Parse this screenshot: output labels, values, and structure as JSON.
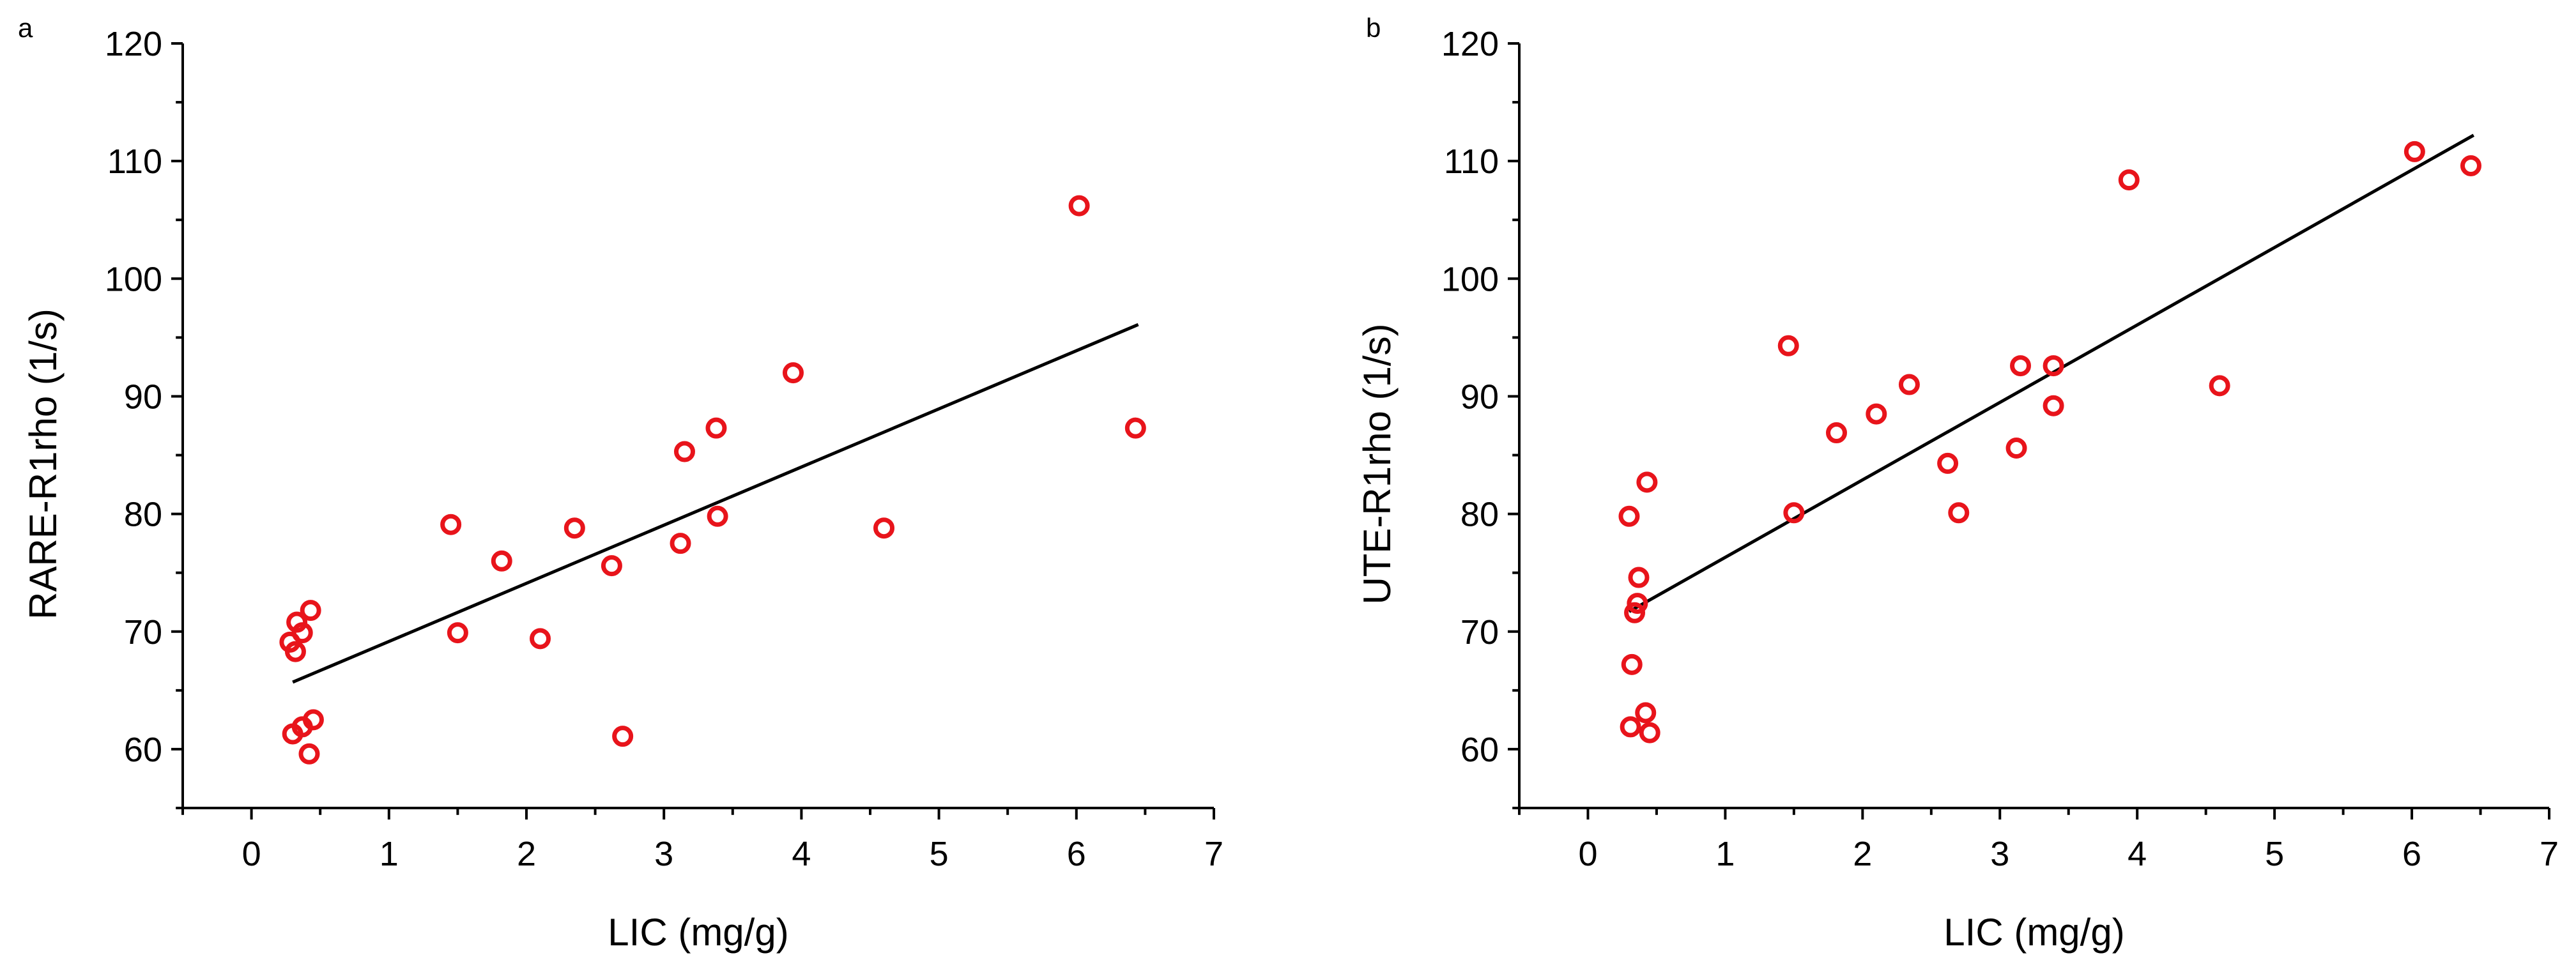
{
  "chart_data": [
    {
      "type": "scatter",
      "panel_label": "a",
      "title": "",
      "xlabel": "LIC (mg/g)",
      "ylabel": "RARE-R1rho (1/s)",
      "xlim": [
        -0.5,
        7
      ],
      "ylim": [
        55,
        120
      ],
      "xticks": [
        0,
        1,
        2,
        3,
        4,
        5,
        6,
        7
      ],
      "yticks": [
        60,
        70,
        80,
        90,
        100,
        110,
        120
      ],
      "grid": false,
      "legend": "none",
      "marker_color": "#e8141b",
      "line_color": "#000000",
      "points": [
        {
          "x": 0.28,
          "y": 69.1
        },
        {
          "x": 0.32,
          "y": 68.3
        },
        {
          "x": 0.33,
          "y": 70.8
        },
        {
          "x": 0.37,
          "y": 69.9
        },
        {
          "x": 0.43,
          "y": 71.8
        },
        {
          "x": 0.3,
          "y": 61.3
        },
        {
          "x": 0.37,
          "y": 61.9
        },
        {
          "x": 0.45,
          "y": 62.5
        },
        {
          "x": 0.42,
          "y": 59.6
        },
        {
          "x": 1.45,
          "y": 79.1
        },
        {
          "x": 1.5,
          "y": 69.9
        },
        {
          "x": 1.82,
          "y": 76.0
        },
        {
          "x": 2.1,
          "y": 69.4
        },
        {
          "x": 2.35,
          "y": 78.8
        },
        {
          "x": 2.62,
          "y": 75.6
        },
        {
          "x": 2.7,
          "y": 61.1
        },
        {
          "x": 3.12,
          "y": 77.5
        },
        {
          "x": 3.15,
          "y": 85.3
        },
        {
          "x": 3.38,
          "y": 87.3
        },
        {
          "x": 3.39,
          "y": 79.8
        },
        {
          "x": 3.94,
          "y": 92.0
        },
        {
          "x": 4.6,
          "y": 78.8
        },
        {
          "x": 6.02,
          "y": 106.2
        },
        {
          "x": 6.43,
          "y": 87.3
        }
      ],
      "fit_line": {
        "x": [
          0.3,
          6.45
        ],
        "y": [
          65.7,
          96.1
        ]
      }
    },
    {
      "type": "scatter",
      "panel_label": "b",
      "title": "",
      "xlabel": "LIC (mg/g)",
      "ylabel": "UTE-R1rho (1/s)",
      "xlim": [
        -0.5,
        7
      ],
      "ylim": [
        55,
        120
      ],
      "xticks": [
        0,
        1,
        2,
        3,
        4,
        5,
        6,
        7
      ],
      "yticks": [
        60,
        70,
        80,
        90,
        100,
        110,
        120
      ],
      "grid": false,
      "legend": "none",
      "marker_color": "#e8141b",
      "line_color": "#000000",
      "points": [
        {
          "x": 0.3,
          "y": 79.8
        },
        {
          "x": 0.43,
          "y": 82.7
        },
        {
          "x": 0.37,
          "y": 74.6
        },
        {
          "x": 0.36,
          "y": 72.4
        },
        {
          "x": 0.34,
          "y": 71.6
        },
        {
          "x": 0.32,
          "y": 67.2
        },
        {
          "x": 0.42,
          "y": 63.1
        },
        {
          "x": 0.31,
          "y": 61.9
        },
        {
          "x": 0.45,
          "y": 61.4
        },
        {
          "x": 1.46,
          "y": 94.3
        },
        {
          "x": 1.5,
          "y": 80.1
        },
        {
          "x": 1.81,
          "y": 86.9
        },
        {
          "x": 2.1,
          "y": 88.5
        },
        {
          "x": 2.34,
          "y": 91.0
        },
        {
          "x": 2.62,
          "y": 84.3
        },
        {
          "x": 2.7,
          "y": 80.1
        },
        {
          "x": 3.12,
          "y": 85.6
        },
        {
          "x": 3.15,
          "y": 92.6
        },
        {
          "x": 3.39,
          "y": 92.6
        },
        {
          "x": 3.39,
          "y": 89.2
        },
        {
          "x": 3.94,
          "y": 108.4
        },
        {
          "x": 4.6,
          "y": 90.9
        },
        {
          "x": 6.02,
          "y": 110.8
        },
        {
          "x": 6.43,
          "y": 109.6
        }
      ],
      "fit_line": {
        "x": [
          0.3,
          6.45
        ],
        "y": [
          71.7,
          112.2
        ]
      }
    }
  ]
}
